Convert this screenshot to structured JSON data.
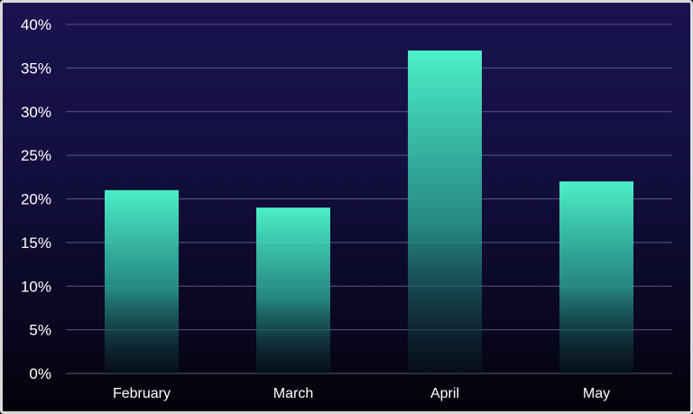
{
  "chart_data": {
    "type": "bar",
    "categories": [
      "February",
      "March",
      "April",
      "May"
    ],
    "values": [
      21,
      19,
      37,
      22
    ],
    "ylim": [
      0,
      40
    ],
    "yticks": [
      0,
      5,
      10,
      15,
      20,
      25,
      30,
      35,
      40
    ],
    "ytick_labels": [
      "0%",
      "5%",
      "10%",
      "15%",
      "20%",
      "25%",
      "30%",
      "35%",
      "40%"
    ],
    "value_unit": "%",
    "title": "",
    "xlabel": "",
    "ylabel": "",
    "grid": "horizontal",
    "legend": "none"
  },
  "colors": {
    "bar_top": "#4cf0c9",
    "bar_bottom": "#0a1a24",
    "gridline": "#5a5680",
    "background_top": "#1a1350",
    "background_bottom": "#020208",
    "text": "#ffffff"
  }
}
